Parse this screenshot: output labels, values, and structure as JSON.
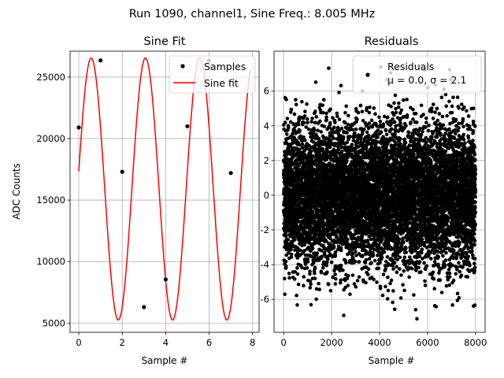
{
  "suptitle": "Run 1090, channel1, Sine Freq.: 8.005 MHz",
  "chart_data": [
    {
      "type": "line",
      "title": "Sine Fit",
      "xlabel": "Sample #",
      "ylabel": "ADC Counts",
      "xlim": [
        -0.4,
        8.3
      ],
      "ylim": [
        4250,
        27100
      ],
      "xticks": [
        0,
        2,
        4,
        6,
        8
      ],
      "yticks": [
        5000,
        10000,
        15000,
        20000,
        25000
      ],
      "grid": true,
      "legend_position": "top-right",
      "series": [
        {
          "name": "Samples",
          "style": "points",
          "color": "#000000",
          "x": [
            0,
            1,
            2,
            3,
            4,
            5,
            6,
            7
          ],
          "values": [
            20900,
            26350,
            17300,
            6300,
            8550,
            21000,
            26350,
            17200
          ]
        },
        {
          "name": "Sine fit",
          "style": "line",
          "color": "#ff0000",
          "model": {
            "offset": 15900,
            "amplitude": 10650,
            "omega": 2.5147,
            "phase": 0.1346
          },
          "x_range": [
            0,
            7.9
          ]
        }
      ]
    },
    {
      "type": "scatter",
      "title": "Residuals",
      "xlabel": "Sample #",
      "ylabel": "",
      "xlim": [
        -400,
        8400
      ],
      "ylim": [
        -7.9,
        8.3
      ],
      "xticks": [
        0,
        2000,
        4000,
        6000,
        8000
      ],
      "yticks": [
        -6,
        -4,
        -2,
        0,
        2,
        4,
        6
      ],
      "grid": true,
      "legend_position": "top-right",
      "legend_title": "Residuals",
      "legend_stats": "μ = 0.0, σ = 2.1",
      "series": [
        {
          "name": "Residuals",
          "color": "#000000",
          "n_points": 8000,
          "x_range": [
            0,
            8000
          ],
          "mean": 0.0,
          "std": 2.1,
          "min": -7.2,
          "max": 7.5
        }
      ]
    }
  ]
}
